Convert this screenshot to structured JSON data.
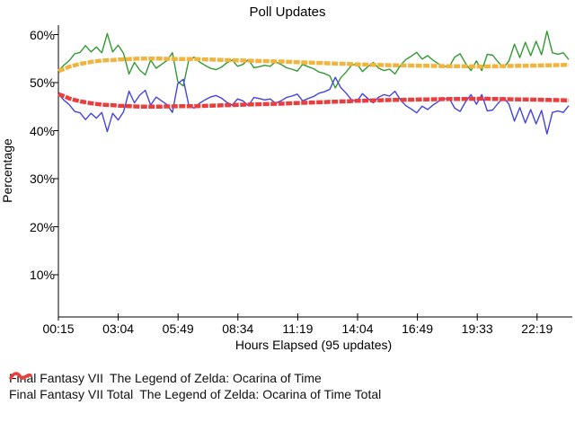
{
  "title": "Poll Updates",
  "axes": {
    "xlabel": "Hours Elapsed (95 updates)",
    "ylabel": "Percentage",
    "y_ticks": [
      {
        "label": "60%",
        "value": 60
      },
      {
        "label": "50%",
        "value": 50
      },
      {
        "label": "40%",
        "value": 40
      },
      {
        "label": "30%",
        "value": 30
      },
      {
        "label": "20%",
        "value": 20
      },
      {
        "label": "10%",
        "value": 10
      }
    ],
    "x_ticks": [
      "00:15",
      "03:04",
      "05:49",
      "08:34",
      "11:19",
      "14:04",
      "16:49",
      "19:33",
      "22:19"
    ]
  },
  "chart_data": {
    "type": "line",
    "title": "Poll Updates",
    "xlabel": "Hours Elapsed (95 updates)",
    "ylabel": "Percentage",
    "ylim": [
      0,
      62
    ],
    "num_points": 95,
    "x_tick_labels": [
      "00:15",
      "03:04",
      "05:49",
      "08:34",
      "11:19",
      "14:04",
      "16:49",
      "19:33",
      "22:19"
    ],
    "series": [
      {
        "name": "Final Fantasy VII",
        "color": "#339933",
        "width": 1.4,
        "dashed": false,
        "values": [
          52.4,
          53.6,
          54.6,
          56.0,
          56.3,
          57.7,
          56.4,
          57.4,
          56.2,
          60.2,
          56.4,
          57.8,
          56.1,
          51.8,
          54.2,
          52.6,
          51.6,
          54.7,
          53.0,
          53.8,
          54.6,
          56.2,
          50.2,
          49.3,
          54.6,
          55.3,
          54.3,
          53.6,
          53.0,
          52.7,
          53.2,
          54.1,
          54.7,
          53.4,
          53.8,
          54.8,
          53.1,
          53.3,
          53.6,
          53.4,
          54.3,
          53.8,
          53.1,
          52.8,
          52.4,
          53.8,
          53.3,
          52.9,
          52.2,
          51.9,
          51.4,
          48.9,
          51.0,
          52.2,
          53.6,
          53.9,
          52.3,
          53.3,
          54.2,
          53.0,
          52.5,
          52.8,
          51.8,
          53.6,
          54.8,
          55.5,
          56.3,
          54.9,
          55.6,
          54.7,
          53.9,
          53.4,
          53.3,
          55.3,
          56.0,
          54.0,
          52.5,
          54.5,
          52.5,
          55.9,
          55.7,
          54.3,
          53.1,
          54.5,
          58.0,
          55.2,
          58.4,
          55.6,
          58.6,
          55.8,
          60.7,
          56.2,
          55.9,
          56.2,
          54.8
        ]
      },
      {
        "name": "The Legend of Zelda: Ocarina of Time",
        "color": "#4444dd",
        "width": 1.4,
        "dashed": false,
        "values": [
          47.6,
          46.4,
          45.4,
          44.0,
          43.7,
          42.3,
          43.6,
          42.6,
          43.8,
          39.8,
          43.6,
          42.2,
          43.9,
          48.2,
          45.8,
          47.4,
          48.4,
          45.3,
          47.0,
          46.2,
          45.4,
          43.8,
          49.8,
          50.7,
          45.4,
          44.7,
          45.7,
          46.4,
          47.0,
          47.3,
          46.8,
          45.9,
          45.3,
          46.6,
          46.2,
          45.2,
          46.9,
          46.7,
          46.4,
          46.6,
          45.7,
          46.2,
          46.9,
          47.2,
          47.6,
          46.2,
          46.7,
          47.1,
          47.8,
          48.1,
          48.6,
          51.1,
          49.0,
          47.8,
          46.4,
          46.1,
          47.7,
          46.7,
          45.8,
          47.0,
          47.5,
          47.2,
          48.2,
          46.4,
          45.2,
          44.5,
          43.7,
          45.1,
          44.4,
          45.3,
          46.1,
          46.6,
          46.7,
          44.7,
          44.0,
          46.0,
          47.5,
          45.5,
          47.5,
          44.1,
          44.3,
          45.7,
          46.9,
          45.5,
          42.0,
          44.8,
          41.6,
          44.4,
          41.4,
          44.2,
          39.3,
          43.8,
          44.1,
          43.8,
          45.2
        ]
      },
      {
        "name": "Final Fantasy VII Total",
        "color": "#f0b53e",
        "width": 4.5,
        "dashed": true,
        "values": [
          52.4,
          52.8,
          53.3,
          53.6,
          53.9,
          54.1,
          54.3,
          54.45,
          54.6,
          54.65,
          54.7,
          54.8,
          54.85,
          54.9,
          54.95,
          55.0,
          55.0,
          55.0,
          55.0,
          55.0,
          54.95,
          54.95,
          54.9,
          54.9,
          54.9,
          54.9,
          54.87,
          54.85,
          54.8,
          54.77,
          54.73,
          54.7,
          54.67,
          54.63,
          54.6,
          54.57,
          54.53,
          54.5,
          54.47,
          54.45,
          54.42,
          54.4,
          54.35,
          54.3,
          54.25,
          54.2,
          54.17,
          54.13,
          54.1,
          54.07,
          54.0,
          53.97,
          53.93,
          53.9,
          53.85,
          53.8,
          53.77,
          53.73,
          53.7,
          53.68,
          53.65,
          53.63,
          53.6,
          53.6,
          53.57,
          53.55,
          53.53,
          53.5,
          53.5,
          53.47,
          53.45,
          53.43,
          53.42,
          53.4,
          53.4,
          53.4,
          53.38,
          53.37,
          53.35,
          53.37,
          53.4,
          53.42,
          53.43,
          53.45,
          53.47,
          53.5,
          53.52,
          53.53,
          53.55,
          53.57,
          53.6,
          53.62,
          53.65,
          53.67,
          53.7
        ]
      },
      {
        "name": "The Legend of Zelda: Ocarina of Time Total",
        "color": "#ea3e3e",
        "width": 4.5,
        "dashed": true,
        "values": [
          47.6,
          47.2,
          46.7,
          46.4,
          46.1,
          45.9,
          45.7,
          45.55,
          45.4,
          45.35,
          45.3,
          45.2,
          45.15,
          45.1,
          45.05,
          45.0,
          45.0,
          45.0,
          45.0,
          45.0,
          45.05,
          45.05,
          45.1,
          45.1,
          45.1,
          45.1,
          45.13,
          45.15,
          45.2,
          45.23,
          45.27,
          45.3,
          45.33,
          45.37,
          45.4,
          45.43,
          45.47,
          45.5,
          45.53,
          45.55,
          45.58,
          45.6,
          45.65,
          45.7,
          45.75,
          45.8,
          45.83,
          45.87,
          45.9,
          45.93,
          46.0,
          46.03,
          46.07,
          46.1,
          46.15,
          46.2,
          46.23,
          46.27,
          46.3,
          46.32,
          46.35,
          46.37,
          46.4,
          46.4,
          46.43,
          46.45,
          46.47,
          46.5,
          46.5,
          46.53,
          46.55,
          46.57,
          46.58,
          46.6,
          46.6,
          46.6,
          46.62,
          46.63,
          46.65,
          46.63,
          46.6,
          46.58,
          46.57,
          46.55,
          46.53,
          46.5,
          46.48,
          46.47,
          46.45,
          46.43,
          46.4,
          46.38,
          46.35,
          46.33,
          46.3
        ]
      }
    ]
  },
  "legend": {
    "rows": [
      [
        {
          "label": "Final Fantasy VII",
          "color": "#339933",
          "thick": false
        },
        {
          "label": "The Legend of Zelda: Ocarina of Time",
          "color": "#4444dd",
          "thick": false
        }
      ],
      [
        {
          "label": "Final Fantasy VII Total",
          "color": "#f0b53e",
          "thick": true
        },
        {
          "label": "The Legend of Zelda: Ocarina of Time Total",
          "color": "#ea3e3e",
          "thick": true
        }
      ]
    ]
  }
}
